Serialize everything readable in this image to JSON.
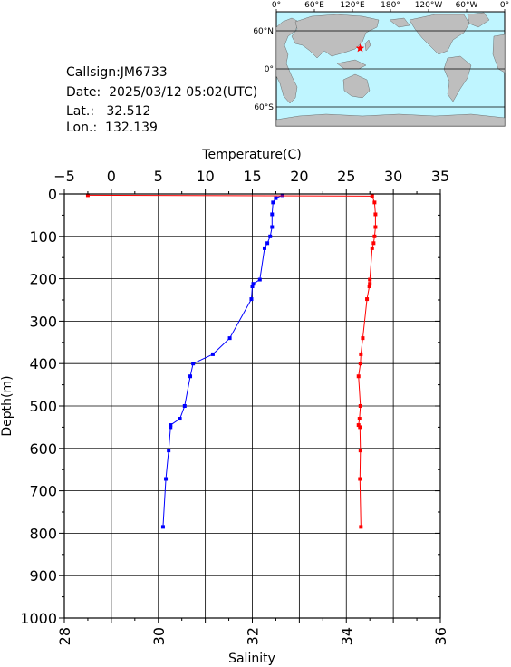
{
  "info": {
    "callsign": "Callsign:JM6733",
    "date": "Date:  2025/03/12 05:02(UTC)",
    "lat": "Lat.:   32.512",
    "lon": "Lon.:  132.139"
  },
  "map": {
    "lon_labels": [
      "0°",
      "60°E",
      "120°E",
      "180°",
      "120°W",
      "60°W",
      "0°"
    ],
    "lat_labels": [
      "60°N",
      "0°",
      "60°S"
    ],
    "station": {
      "lat": 32.512,
      "lon": 132.139
    },
    "colors": {
      "ocean": "#bff5ff",
      "land": "#bebebe",
      "station": "#ff0000"
    }
  },
  "chart_data": {
    "type": "line",
    "title": "",
    "ylabel": "Depth(m)",
    "ylim": [
      0,
      1000
    ],
    "y_ticks": [
      "0",
      "100",
      "200",
      "300",
      "400",
      "500",
      "600",
      "700",
      "800",
      "900",
      "1000"
    ],
    "grid": true,
    "temperature_axis": {
      "label": "Temperature(C)",
      "range": [
        -5,
        35
      ],
      "ticks": [
        "−5",
        "0",
        "5",
        "10",
        "15",
        "20",
        "25",
        "30",
        "35"
      ]
    },
    "salinity_axis": {
      "label": "Salinity",
      "range": [
        28,
        36
      ],
      "ticks": [
        "28",
        "30",
        "32",
        "34",
        "36"
      ]
    },
    "series": [
      {
        "name": "Temperature",
        "axis": "temperature",
        "color": "#0000ff",
        "x": [
          18.2,
          17.5,
          17.2,
          17.1,
          17.1,
          16.9,
          16.6,
          16.3,
          15.8,
          15.1,
          15.0,
          14.9,
          12.6,
          10.8,
          8.7,
          8.4,
          7.8,
          7.3,
          6.3,
          6.3,
          6.1,
          5.8,
          5.5
        ],
        "y": [
          3,
          10,
          20,
          48,
          78,
          100,
          116,
          128,
          202,
          212,
          218,
          248,
          340,
          378,
          400,
          430,
          500,
          530,
          545,
          550,
          605,
          672,
          785
        ]
      },
      {
        "name": "Salinity",
        "axis": "salinity",
        "color": "#ff0000",
        "x": [
          28.5,
          34.55,
          34.6,
          34.62,
          34.62,
          34.6,
          34.58,
          34.55,
          34.5,
          34.5,
          34.49,
          34.44,
          34.35,
          34.31,
          34.3,
          34.26,
          34.3,
          34.28,
          34.26,
          34.29,
          34.3,
          34.29,
          34.31
        ],
        "y": [
          3,
          5,
          20,
          48,
          78,
          100,
          116,
          128,
          202,
          212,
          218,
          248,
          340,
          378,
          400,
          430,
          500,
          530,
          545,
          550,
          605,
          672,
          785
        ]
      }
    ]
  }
}
